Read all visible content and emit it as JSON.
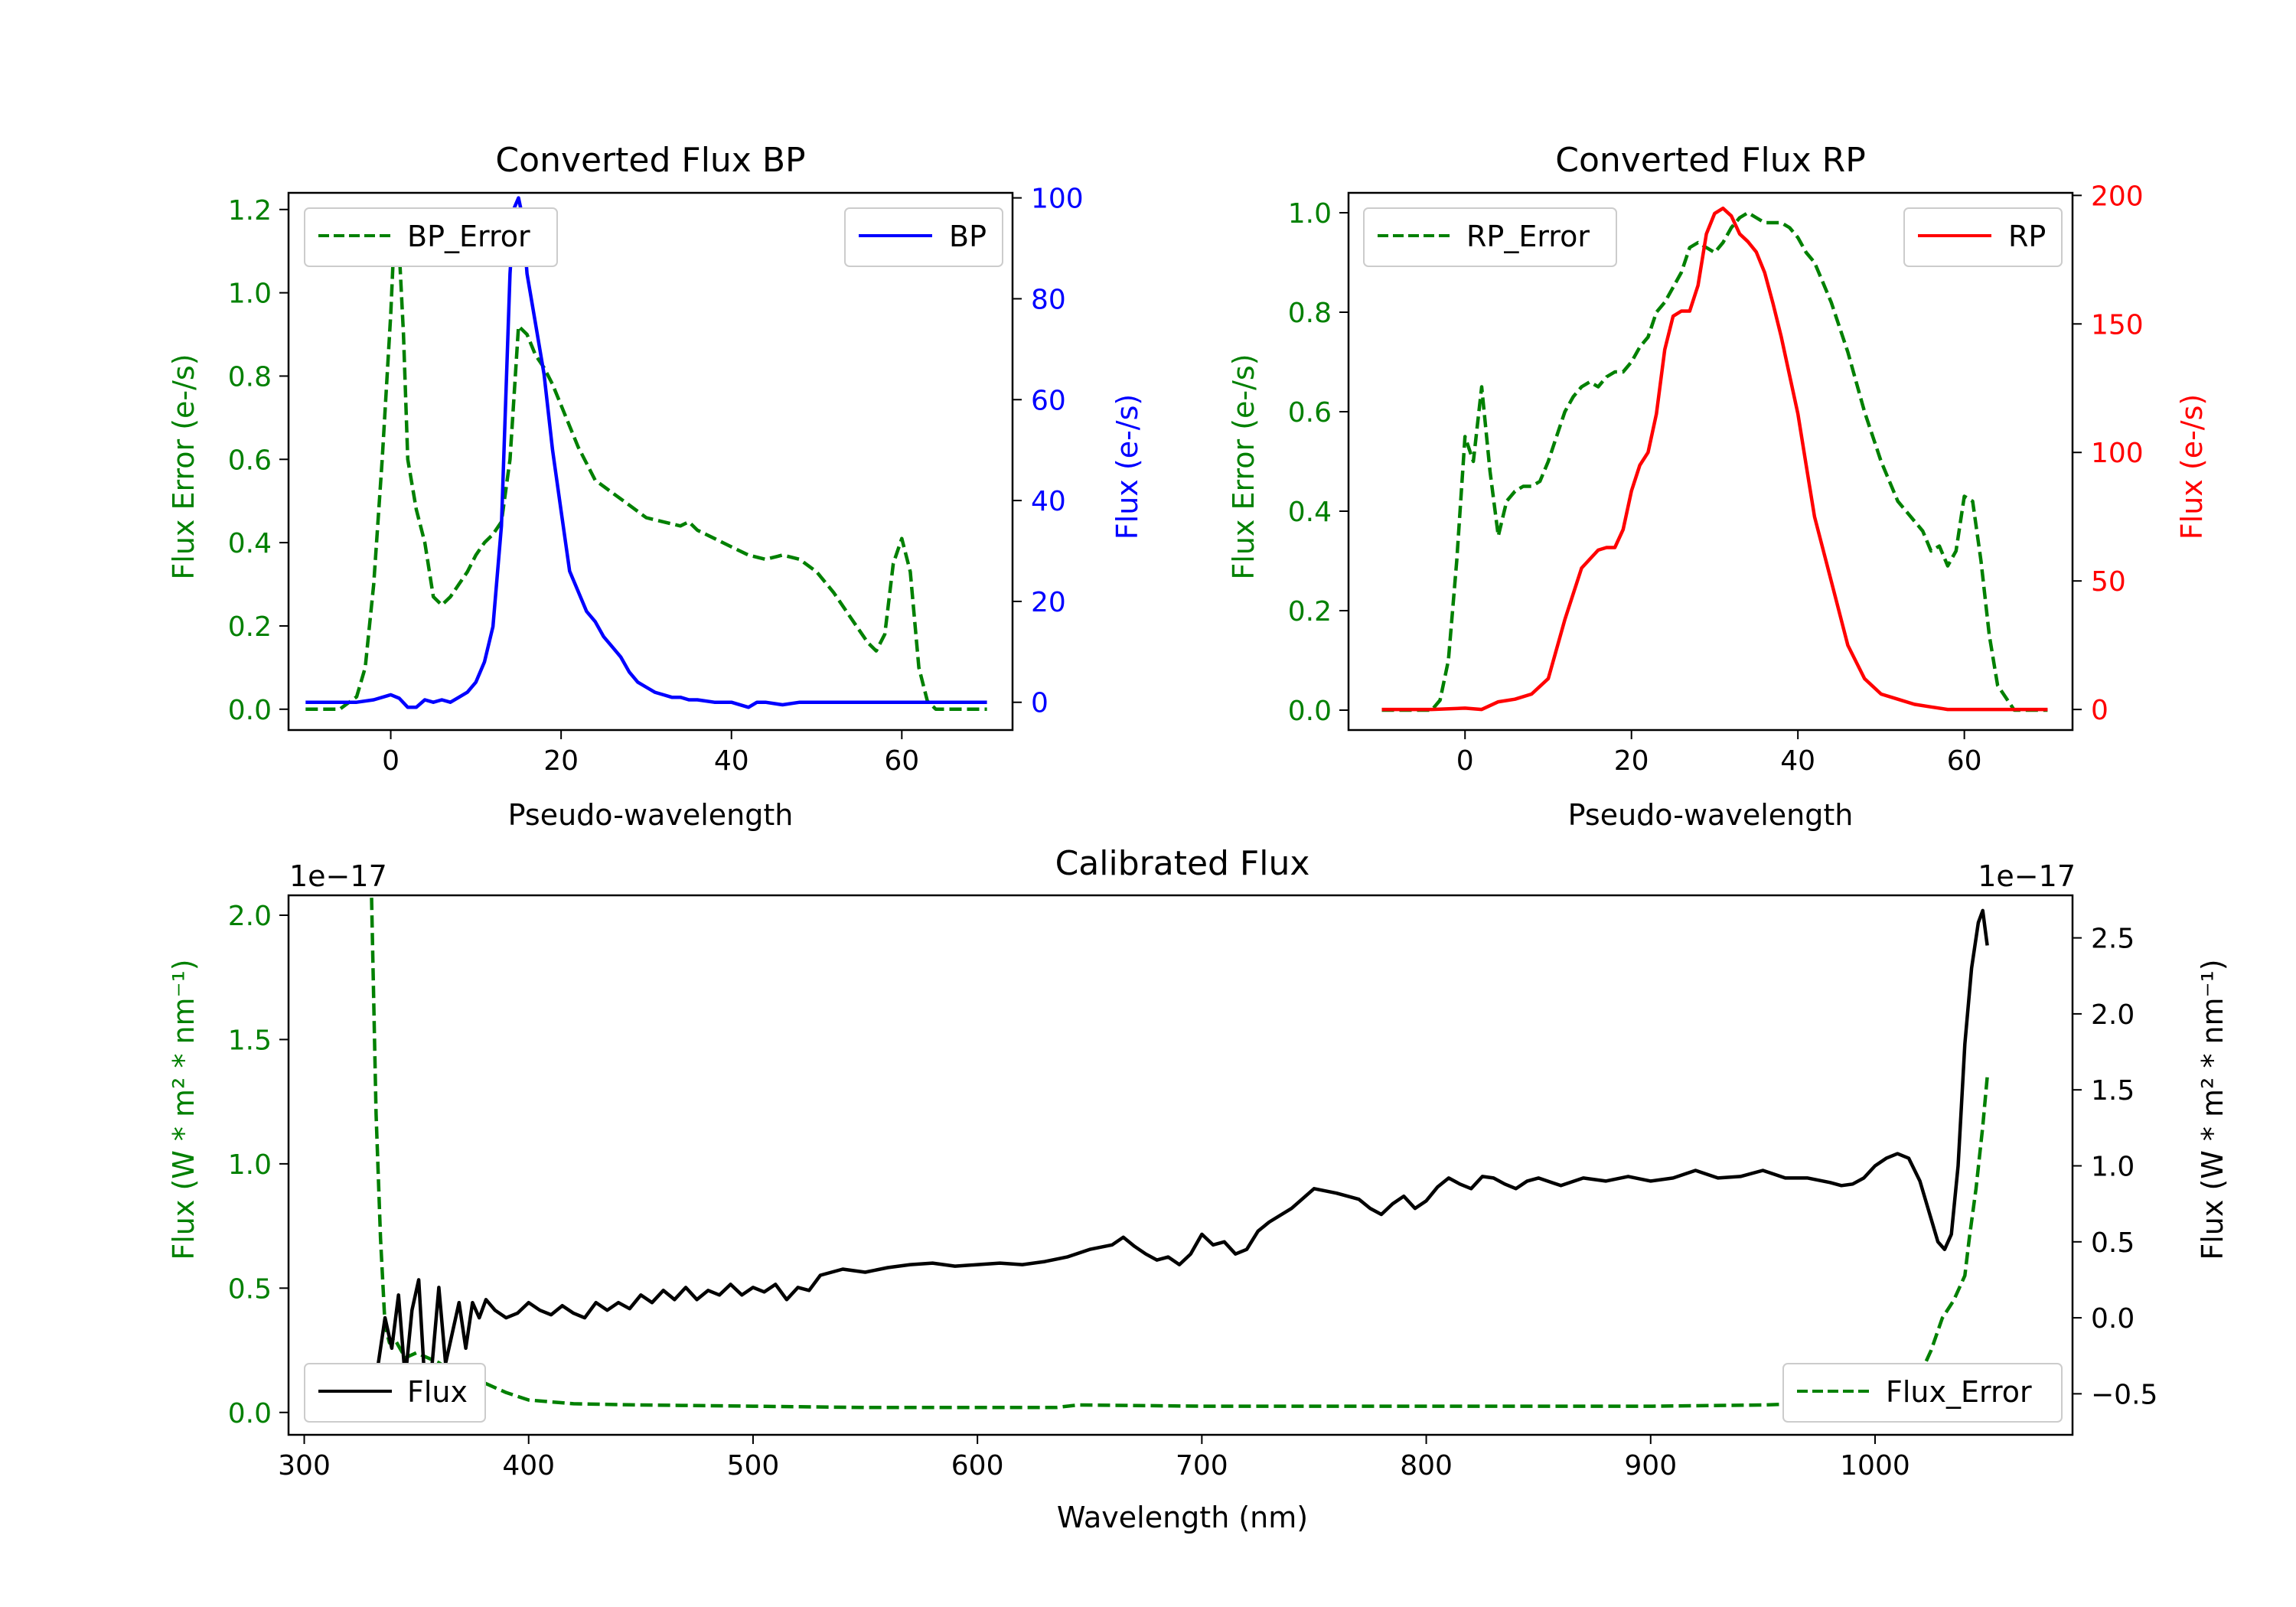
{
  "chart_data": [
    {
      "id": "bp",
      "type": "line",
      "title": "Converted Flux BP",
      "xlabel": "Pseudo-wavelength",
      "xlim": [
        -12,
        73
      ],
      "xticks": [
        0,
        20,
        40,
        60
      ],
      "left_axis": {
        "label": "Flux Error (e-/s)",
        "color": "#008000",
        "ylim": [
          -0.05,
          1.24
        ],
        "ticks": [
          0.0,
          0.2,
          0.4,
          0.6,
          0.8,
          1.0,
          1.2
        ],
        "tick_labels": [
          "0.0",
          "0.2",
          "0.4",
          "0.6",
          "0.8",
          "1.0",
          "1.2"
        ]
      },
      "right_axis": {
        "label": "Flux (e-/s)",
        "color": "#0000ff",
        "ylim": [
          -5.5,
          101
        ],
        "ticks": [
          0,
          20,
          40,
          60,
          80,
          100
        ],
        "tick_labels": [
          "0",
          "20",
          "40",
          "60",
          "80",
          "100"
        ]
      },
      "series": [
        {
          "name": "BP_Error",
          "axis": "left",
          "color": "#008000",
          "dash": true,
          "x": [
            -10,
            -6,
            -4,
            -3,
            -2,
            -1,
            0,
            0.5,
            1,
            1.5,
            2,
            3,
            4,
            5,
            6,
            7,
            8,
            9,
            10,
            11,
            12,
            13,
            14,
            15,
            16,
            17,
            18,
            19,
            20,
            22,
            24,
            26,
            28,
            30,
            32,
            34,
            35,
            36,
            38,
            40,
            42,
            44,
            46,
            48,
            50,
            52,
            54,
            56,
            57,
            58,
            59,
            60,
            61,
            62,
            63,
            64,
            66,
            70
          ],
          "values": [
            0.0,
            0.0,
            0.03,
            0.1,
            0.3,
            0.6,
            0.95,
            1.18,
            1.1,
            0.9,
            0.6,
            0.48,
            0.4,
            0.27,
            0.25,
            0.27,
            0.3,
            0.33,
            0.37,
            0.4,
            0.42,
            0.45,
            0.6,
            0.92,
            0.9,
            0.85,
            0.82,
            0.78,
            0.73,
            0.63,
            0.55,
            0.52,
            0.49,
            0.46,
            0.45,
            0.44,
            0.45,
            0.43,
            0.41,
            0.39,
            0.37,
            0.36,
            0.37,
            0.36,
            0.33,
            0.28,
            0.22,
            0.16,
            0.14,
            0.18,
            0.35,
            0.41,
            0.33,
            0.1,
            0.02,
            0.0,
            0.0,
            0.0
          ]
        },
        {
          "name": "BP",
          "axis": "right",
          "color": "#0000ff",
          "dash": false,
          "x": [
            -10,
            -4,
            -2,
            0,
            1,
            2,
            3,
            4,
            5,
            6,
            7,
            8,
            9,
            10,
            11,
            12,
            13,
            13.5,
            14,
            14.5,
            15,
            15.5,
            16,
            17,
            18,
            19,
            20,
            21,
            22,
            23,
            24,
            25,
            26,
            27,
            28,
            29,
            30,
            31,
            32,
            33,
            34,
            35,
            36,
            38,
            40,
            42,
            43,
            44,
            46,
            48,
            50,
            55,
            58,
            60,
            65,
            70
          ],
          "values": [
            0.0,
            0.0,
            0.5,
            1.5,
            0.8,
            -1,
            -1,
            0.5,
            0,
            0.5,
            0,
            1,
            2,
            4,
            8,
            15,
            35,
            60,
            85,
            98,
            100,
            96,
            85,
            75,
            65,
            50,
            38,
            26,
            22,
            18,
            16,
            13,
            11,
            9,
            6,
            4,
            3,
            2,
            1.5,
            1,
            1,
            0.5,
            0.5,
            0,
            0,
            -1,
            0,
            0,
            -0.5,
            0,
            0,
            0,
            0,
            0,
            0,
            0
          ]
        }
      ],
      "legend": [
        {
          "label": "BP_Error",
          "position": "upper-left"
        },
        {
          "label": "BP",
          "position": "upper-right"
        }
      ]
    },
    {
      "id": "rp",
      "type": "line",
      "title": "Converted Flux RP",
      "xlabel": "Pseudo-wavelength",
      "xlim": [
        -14,
        73
      ],
      "xticks": [
        0,
        20,
        40,
        60
      ],
      "left_axis": {
        "label": "Flux Error (e-/s)",
        "color": "#008000",
        "ylim": [
          -0.04,
          1.04
        ],
        "ticks": [
          0.0,
          0.2,
          0.4,
          0.6,
          0.8,
          1.0
        ],
        "tick_labels": [
          "0.0",
          "0.2",
          "0.4",
          "0.6",
          "0.8",
          "1.0"
        ]
      },
      "right_axis": {
        "label": "Flux (e-/s)",
        "color": "#ff0000",
        "ylim": [
          -8,
          201
        ],
        "ticks": [
          0,
          50,
          100,
          150,
          200
        ],
        "tick_labels": [
          "0",
          "50",
          "100",
          "150",
          "200"
        ]
      },
      "series": [
        {
          "name": "RP_Error",
          "axis": "left",
          "color": "#008000",
          "dash": true,
          "x": [
            -10,
            -4,
            -3,
            -2,
            -1,
            0,
            1,
            2,
            3,
            4,
            5,
            6,
            7,
            8,
            9,
            10,
            11,
            12,
            13,
            14,
            15,
            16,
            17,
            18,
            19,
            20,
            21,
            22,
            23,
            24,
            25,
            26,
            27,
            28,
            29,
            30,
            31,
            32,
            33,
            34,
            35,
            36,
            37,
            38,
            39,
            40,
            41,
            42,
            44,
            46,
            48,
            50,
            52,
            54,
            55,
            56,
            57,
            58,
            59,
            60,
            61,
            62,
            63,
            64,
            66,
            70
          ],
          "values": [
            0.0,
            0.0,
            0.02,
            0.1,
            0.3,
            0.55,
            0.5,
            0.65,
            0.48,
            0.35,
            0.42,
            0.44,
            0.45,
            0.45,
            0.46,
            0.5,
            0.55,
            0.6,
            0.63,
            0.65,
            0.66,
            0.65,
            0.67,
            0.68,
            0.68,
            0.7,
            0.73,
            0.75,
            0.8,
            0.82,
            0.85,
            0.88,
            0.93,
            0.94,
            0.93,
            0.92,
            0.94,
            0.97,
            0.99,
            1.0,
            0.99,
            0.98,
            0.98,
            0.98,
            0.97,
            0.95,
            0.92,
            0.9,
            0.82,
            0.72,
            0.6,
            0.5,
            0.42,
            0.38,
            0.36,
            0.32,
            0.33,
            0.29,
            0.32,
            0.43,
            0.42,
            0.3,
            0.15,
            0.05,
            0.0,
            0.0
          ]
        },
        {
          "name": "RP",
          "axis": "right",
          "color": "#ff0000",
          "dash": false,
          "x": [
            -10,
            -4,
            0,
            2,
            4,
            6,
            8,
            10,
            12,
            14,
            16,
            17,
            18,
            19,
            20,
            21,
            22,
            23,
            24,
            25,
            26,
            27,
            28,
            29,
            30,
            31,
            32,
            33,
            34,
            35,
            36,
            37,
            38,
            39,
            40,
            41,
            42,
            44,
            46,
            48,
            50,
            52,
            54,
            56,
            58,
            60,
            65,
            70
          ],
          "values": [
            0.0,
            0.0,
            0.5,
            0,
            3,
            4,
            6,
            12,
            35,
            55,
            62,
            63,
            63,
            70,
            85,
            95,
            100,
            115,
            140,
            153,
            155,
            155,
            165,
            185,
            193,
            195,
            192,
            185,
            182,
            178,
            170,
            158,
            145,
            130,
            115,
            95,
            75,
            50,
            25,
            12,
            6,
            4,
            2,
            1,
            0,
            0,
            0,
            0
          ]
        }
      ],
      "legend": [
        {
          "label": "RP_Error",
          "position": "upper-left"
        },
        {
          "label": "RP",
          "position": "upper-right"
        }
      ]
    },
    {
      "id": "cal",
      "type": "line",
      "title": "Calibrated Flux",
      "xlabel": "Wavelength (nm)",
      "xlim": [
        293,
        1088
      ],
      "xticks": [
        300,
        400,
        500,
        600,
        700,
        800,
        900,
        1000
      ],
      "left_axis": {
        "label": "Flux (W * m² * nm⁻¹)",
        "color": "#008000",
        "offset_text": "1e−17",
        "ylim": [
          -0.09,
          2.08
        ],
        "ticks": [
          0.0,
          0.5,
          1.0,
          1.5,
          2.0
        ],
        "tick_labels": [
          "0.0",
          "0.5",
          "1.0",
          "1.5",
          "2.0"
        ]
      },
      "right_axis": {
        "label": "Flux (W * m² * nm⁻¹)",
        "color": "#000000",
        "offset_text": "1e−17",
        "ylim": [
          -0.77,
          2.78
        ],
        "ticks": [
          -0.5,
          0.0,
          0.5,
          1.0,
          1.5,
          2.0,
          2.5
        ],
        "tick_labels": [
          "−0.5",
          "0.0",
          "0.5",
          "1.0",
          "1.5",
          "2.0",
          "2.5"
        ]
      },
      "series": [
        {
          "name": "Flux_Error",
          "axis": "left",
          "color": "#008000",
          "dash": true,
          "x": [
            330,
            332,
            334,
            336,
            338,
            340,
            345,
            350,
            355,
            360,
            365,
            370,
            380,
            390,
            400,
            420,
            450,
            500,
            550,
            600,
            635,
            640,
            645,
            700,
            800,
            900,
            950,
            980,
            1000,
            1010,
            1015,
            1020,
            1025,
            1030,
            1035,
            1040,
            1042,
            1045,
            1048,
            1050
          ],
          "values": [
            2.07,
            1.2,
            0.7,
            0.35,
            0.28,
            0.3,
            0.22,
            0.24,
            0.22,
            0.2,
            0.17,
            0.15,
            0.12,
            0.08,
            0.05,
            0.035,
            0.03,
            0.025,
            0.02,
            0.02,
            0.02,
            0.025,
            0.03,
            0.025,
            0.025,
            0.025,
            0.03,
            0.04,
            0.06,
            0.08,
            0.1,
            0.15,
            0.25,
            0.38,
            0.45,
            0.55,
            0.7,
            0.9,
            1.15,
            1.35
          ]
        },
        {
          "name": "Flux",
          "axis": "right",
          "color": "#000000",
          "dash": false,
          "x": [
            330,
            333,
            336,
            339,
            342,
            345,
            348,
            351,
            354,
            357,
            360,
            363,
            366,
            369,
            372,
            375,
            378,
            381,
            385,
            390,
            395,
            400,
            405,
            410,
            415,
            420,
            425,
            430,
            435,
            440,
            445,
            450,
            455,
            460,
            465,
            470,
            475,
            480,
            485,
            490,
            495,
            500,
            505,
            510,
            515,
            520,
            525,
            530,
            540,
            550,
            560,
            570,
            580,
            590,
            600,
            610,
            620,
            630,
            640,
            650,
            660,
            665,
            670,
            675,
            680,
            685,
            690,
            695,
            700,
            705,
            710,
            715,
            720,
            725,
            730,
            740,
            750,
            760,
            770,
            775,
            780,
            785,
            790,
            795,
            800,
            805,
            810,
            815,
            820,
            825,
            830,
            835,
            840,
            845,
            850,
            860,
            870,
            880,
            890,
            900,
            910,
            920,
            930,
            940,
            950,
            960,
            970,
            980,
            985,
            990,
            995,
            1000,
            1005,
            1010,
            1015,
            1020,
            1025,
            1028,
            1031,
            1034,
            1037,
            1040,
            1043,
            1046,
            1048,
            1050
          ],
          "values": [
            -0.6,
            -0.3,
            0.0,
            -0.2,
            0.15,
            -0.4,
            0.05,
            0.25,
            -0.5,
            -0.3,
            0.2,
            -0.3,
            -0.1,
            0.1,
            -0.2,
            0.1,
            0.0,
            0.12,
            0.05,
            0.0,
            0.03,
            0.1,
            0.05,
            0.02,
            0.08,
            0.03,
            0.0,
            0.1,
            0.05,
            0.1,
            0.06,
            0.15,
            0.1,
            0.18,
            0.12,
            0.2,
            0.12,
            0.18,
            0.15,
            0.22,
            0.15,
            0.2,
            0.17,
            0.22,
            0.12,
            0.2,
            0.18,
            0.28,
            0.32,
            0.3,
            0.33,
            0.35,
            0.36,
            0.34,
            0.35,
            0.36,
            0.35,
            0.37,
            0.4,
            0.45,
            0.48,
            0.53,
            0.47,
            0.42,
            0.38,
            0.4,
            0.35,
            0.42,
            0.55,
            0.48,
            0.5,
            0.42,
            0.45,
            0.57,
            0.63,
            0.72,
            0.85,
            0.82,
            0.78,
            0.72,
            0.68,
            0.75,
            0.8,
            0.72,
            0.77,
            0.86,
            0.92,
            0.88,
            0.85,
            0.93,
            0.92,
            0.88,
            0.85,
            0.9,
            0.92,
            0.87,
            0.92,
            0.9,
            0.93,
            0.9,
            0.92,
            0.97,
            0.92,
            0.93,
            0.97,
            0.92,
            0.92,
            0.89,
            0.87,
            0.88,
            0.92,
            1.0,
            1.05,
            1.08,
            1.05,
            0.9,
            0.65,
            0.5,
            0.45,
            0.55,
            1.0,
            1.8,
            2.3,
            2.6,
            2.68,
            2.45
          ]
        }
      ],
      "legend": [
        {
          "label": "Flux",
          "position": "lower-left"
        },
        {
          "label": "Flux_Error",
          "position": "lower-right"
        }
      ]
    }
  ]
}
